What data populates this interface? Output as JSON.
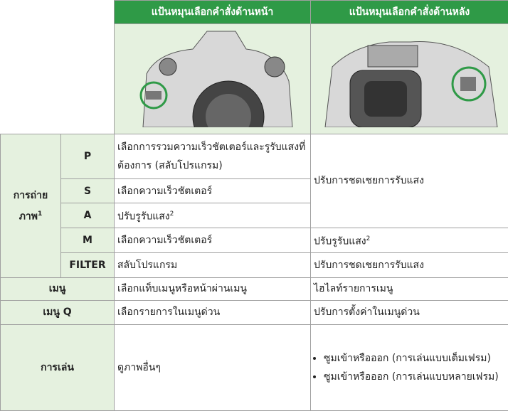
{
  "header": {
    "columns": [
      "แป้นหมุนเลือกคำสั่งด้านหน้า",
      "แป้นหมุนเลือกคำสั่งด้านหลัง"
    ]
  },
  "table": {
    "shooting": {
      "label": "การถ่าย ภาพ",
      "note": "1"
    },
    "rows": [
      {
        "mode": "P",
        "front": "เลือกการรวมความเร็วชัตเตอร์และรูรับแสงที่ต้องการ (สลับโปรแกรม)",
        "rear": "ปรับการชดเชยการรับแสง"
      },
      {
        "mode": "S",
        "front": "เลือกความเร็วชัตเตอร์"
      },
      {
        "mode": "A",
        "front": "ปรับรูรับแสง",
        "front_note": "2"
      },
      {
        "mode": "M",
        "front": "เลือกความเร็วชัตเตอร์",
        "rear": "ปรับรูรับแสง",
        "rear_note": "2"
      },
      {
        "mode": "FILTER",
        "front": "สลับโปรแกรม",
        "rear": "ปรับการชดเชยการรับแสง"
      }
    ],
    "menu": {
      "label": "เมนู",
      "front": "เลือกแท็บเมนูหรือหน้าผ่านเมนู",
      "rear": "ไฮไลท์รายการเมนู"
    },
    "quick_menu": {
      "label": "เมนู Q",
      "front": "เลือกรายการในเมนูด่วน",
      "rear": "ปรับการตั้งค่าในเมนูด่วน"
    },
    "playback": {
      "label": "การเล่น",
      "front": "ดูภาพอื่นๆ",
      "rear": [
        "ซูมเข้าหรือออก (การเล่นแบบเต็มเฟรม)",
        "ซูมเข้าหรือออก (การเล่นแบบหลายเฟรม)"
      ]
    }
  }
}
